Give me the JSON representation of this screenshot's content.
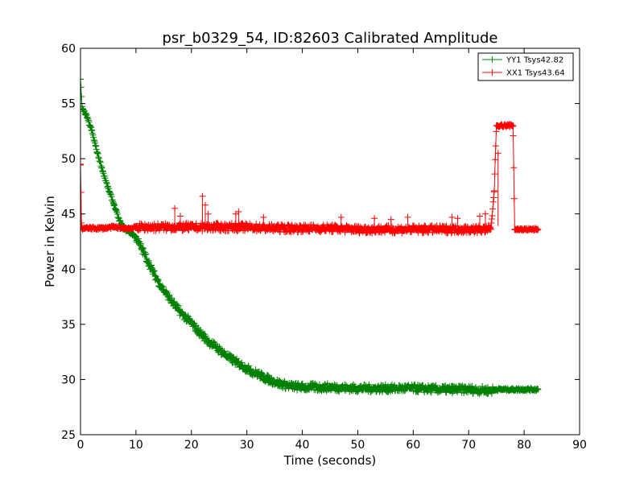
{
  "chart_data": {
    "type": "line",
    "title": "psr_b0329_54, ID:82603 Calibrated Amplitude",
    "xlabel": "Time (seconds)",
    "ylabel": "Power in Kelvin",
    "xlim": [
      0,
      90
    ],
    "ylim": [
      25,
      60
    ],
    "xticks": [
      0,
      10,
      20,
      30,
      40,
      50,
      60,
      70,
      80,
      90
    ],
    "yticks": [
      25,
      30,
      35,
      40,
      45,
      50,
      55,
      60
    ],
    "grid": false,
    "legend_position": "top-right",
    "marker": "+",
    "series": [
      {
        "name": "YY1 Tsys42.82",
        "color": "#008000",
        "points": [
          [
            0,
            57.2
          ],
          [
            0.3,
            54.5
          ],
          [
            1,
            54.0
          ],
          [
            2,
            52.6
          ],
          [
            3,
            50.6
          ],
          [
            4,
            48.9
          ],
          [
            5,
            47.3
          ],
          [
            6,
            45.9
          ],
          [
            7,
            44.4
          ],
          [
            8,
            43.6
          ],
          [
            9,
            43.3
          ],
          [
            10,
            42.9
          ],
          [
            11,
            41.9
          ],
          [
            12,
            40.9
          ],
          [
            13,
            39.8
          ],
          [
            14,
            38.9
          ],
          [
            15,
            38.1
          ],
          [
            16,
            37.4
          ],
          [
            17,
            36.7
          ],
          [
            18,
            36.1
          ],
          [
            19,
            35.6
          ],
          [
            20,
            35.1
          ],
          [
            21,
            34.5
          ],
          [
            22,
            34.0
          ],
          [
            23,
            33.5
          ],
          [
            24,
            33.1
          ],
          [
            25,
            32.7
          ],
          [
            26,
            32.3
          ],
          [
            27,
            31.9
          ],
          [
            28,
            31.6
          ],
          [
            29,
            31.3
          ],
          [
            30,
            31.0
          ],
          [
            31,
            30.7
          ],
          [
            32,
            30.5
          ],
          [
            33,
            30.2
          ],
          [
            34,
            30.0
          ],
          [
            35,
            29.8
          ],
          [
            36,
            29.6
          ],
          [
            38,
            29.4
          ],
          [
            40,
            29.3
          ],
          [
            45,
            29.3
          ],
          [
            50,
            29.2
          ],
          [
            55,
            29.2
          ],
          [
            60,
            29.2
          ],
          [
            65,
            29.1
          ],
          [
            70,
            29.1
          ],
          [
            74,
            29.0
          ],
          [
            75,
            29.1
          ],
          [
            78,
            29.1
          ],
          [
            80,
            29.1
          ],
          [
            82.5,
            29.1
          ]
        ]
      },
      {
        "name": "XX1 Tsys43.64",
        "color": "#ff0000",
        "points": [
          [
            0,
            49.5
          ],
          [
            0.2,
            43.7
          ],
          [
            2,
            43.7
          ],
          [
            4,
            43.7
          ],
          [
            6,
            43.8
          ],
          [
            8,
            43.7
          ],
          [
            9.5,
            43.7
          ],
          [
            10,
            43.8
          ],
          [
            15,
            43.8
          ],
          [
            20,
            43.8
          ],
          [
            25,
            43.8
          ],
          [
            30,
            43.8
          ],
          [
            35,
            43.7
          ],
          [
            40,
            43.7
          ],
          [
            45,
            43.7
          ],
          [
            50,
            43.6
          ],
          [
            55,
            43.6
          ],
          [
            60,
            43.6
          ],
          [
            65,
            43.6
          ],
          [
            70,
            43.6
          ],
          [
            74,
            43.6
          ],
          [
            74.6,
            47.0
          ],
          [
            75,
            53.0
          ],
          [
            76,
            53.0
          ],
          [
            77,
            53.0
          ],
          [
            78,
            53.0
          ],
          [
            78.3,
            43.6
          ],
          [
            80,
            43.6
          ],
          [
            82.5,
            43.6
          ]
        ],
        "spikes": [
          [
            17,
            45.5
          ],
          [
            18,
            44.8
          ],
          [
            22,
            46.6
          ],
          [
            22.5,
            45.8
          ],
          [
            23,
            45.0
          ],
          [
            28,
            45.0
          ],
          [
            28.5,
            45.2
          ],
          [
            33,
            44.7
          ],
          [
            47,
            44.7
          ],
          [
            53,
            44.6
          ],
          [
            56,
            44.5
          ],
          [
            59,
            44.7
          ],
          [
            67,
            44.7
          ],
          [
            68,
            44.6
          ],
          [
            72,
            44.8
          ],
          [
            73,
            45.0
          ],
          [
            75.3,
            50.5
          ]
        ]
      }
    ]
  }
}
